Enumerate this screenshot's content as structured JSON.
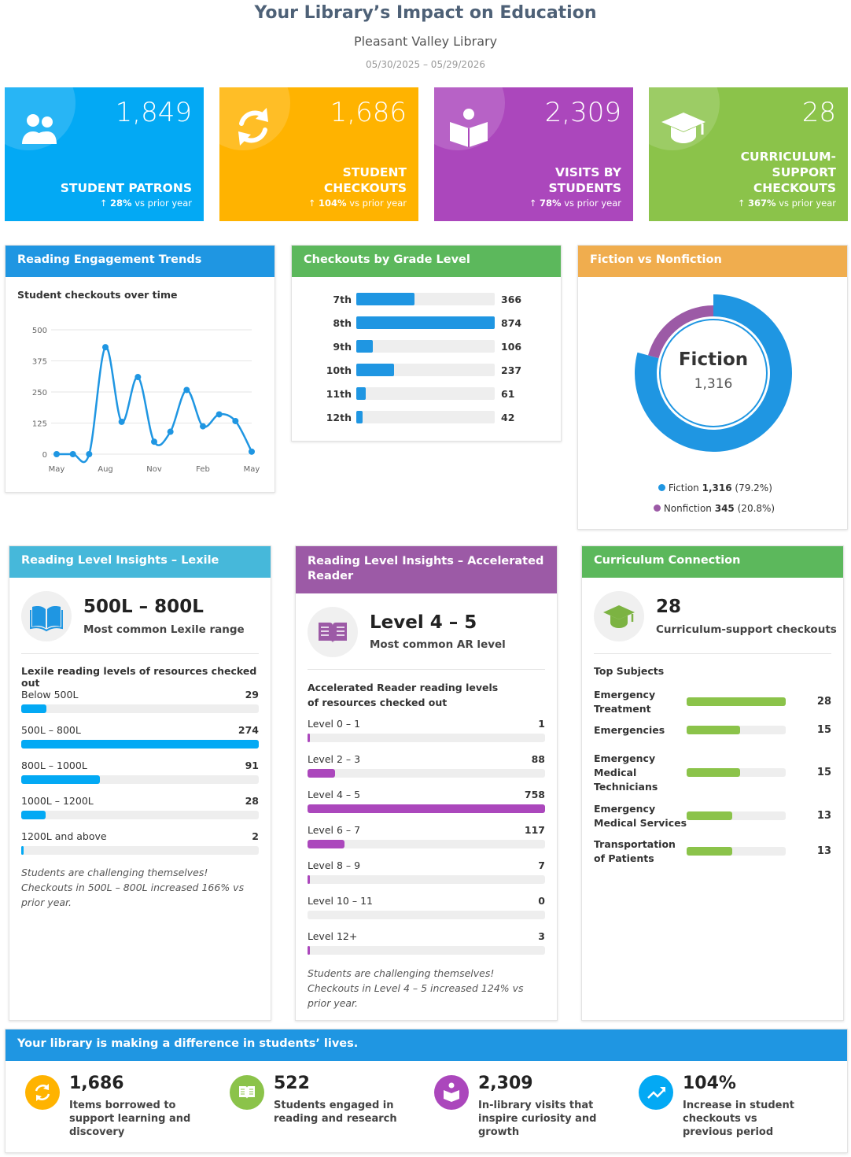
{
  "header": {
    "title": "Your Library’s Impact on Education",
    "library": "Pleasant Valley Library",
    "date_range": "05/30/2025 – 05/29/2026"
  },
  "kpis": [
    {
      "value": "1,849",
      "label": "STUDENT PATRONS",
      "pct": "28%",
      "suffix": " vs prior year",
      "color": "#03a9f4",
      "icon": "people-icon"
    },
    {
      "value": "1,686",
      "label": "STUDENT CHECKOUTS",
      "pct": "104%",
      "suffix": " vs prior year",
      "color": "#ffb300",
      "icon": "refresh-icon"
    },
    {
      "value": "2,309",
      "label": "VISITS BY STUDENTS",
      "pct": "78%",
      "suffix": " vs prior year",
      "color": "#ab47bc",
      "icon": "reader-icon"
    },
    {
      "value": "28",
      "label": "CURRICULUM-SUPPORT CHECKOUTS",
      "pct": "367%",
      "suffix": " vs prior year",
      "color": "#8bc34a",
      "icon": "graduation-cap-icon"
    }
  ],
  "trends": {
    "title": "Reading Engagement Trends",
    "subtitle": "Student checkouts over time"
  },
  "chart_data": [
    {
      "type": "line",
      "title": "Student checkouts over time",
      "x_labels": [
        "May",
        "Aug",
        "Nov",
        "Feb",
        "May"
      ],
      "ylim": [
        0,
        500
      ],
      "yticks": [
        0,
        125,
        250,
        375,
        500
      ],
      "grid": true,
      "values": [
        0,
        0,
        0,
        430,
        130,
        310,
        50,
        90,
        258,
        112,
        160,
        133,
        10
      ]
    },
    {
      "type": "bar",
      "title": "Checkouts by Grade Level",
      "categories": [
        "7th",
        "8th",
        "9th",
        "10th",
        "11th",
        "12th"
      ],
      "values": [
        366,
        874,
        106,
        237,
        61,
        42
      ]
    },
    {
      "type": "pie",
      "title": "Fiction vs Nonfiction",
      "categories": [
        "Fiction",
        "Nonfiction"
      ],
      "values": [
        1316,
        345
      ],
      "percents": [
        "79.2%",
        "20.8%"
      ]
    }
  ],
  "grade": {
    "title": "Checkouts by Grade Level",
    "rows": [
      {
        "label": "7th",
        "value": "366",
        "n": 366
      },
      {
        "label": "8th",
        "value": "874",
        "n": 874
      },
      {
        "label": "9th",
        "value": "106",
        "n": 106
      },
      {
        "label": "10th",
        "value": "237",
        "n": 237
      },
      {
        "label": "11th",
        "value": "61",
        "n": 61
      },
      {
        "label": "12th",
        "value": "42",
        "n": 42
      }
    ]
  },
  "fiction": {
    "title": "Fiction vs Nonfiction",
    "center_label": "Fiction",
    "center_value": "1,316",
    "legend": [
      {
        "name": "Fiction",
        "value": "1,316",
        "pct": "(79.2%)",
        "color": "#1f96e2"
      },
      {
        "name": "Nonfiction",
        "value": "345",
        "pct": "(20.8%)",
        "color": "#9c5aa6"
      }
    ]
  },
  "lexile": {
    "title": "Reading Level Insights – Lexile",
    "range": "500L – 800L",
    "range_sub": "Most common Lexile range",
    "list_title": "Lexile reading levels of resources checked out",
    "rows": [
      {
        "label": "Below 500L",
        "value": "29",
        "pct": 0.106
      },
      {
        "label": "500L – 800L",
        "value": "274",
        "pct": 1
      },
      {
        "label": "800L – 1000L",
        "value": "91",
        "pct": 0.332
      },
      {
        "label": "1000L – 1200L",
        "value": "28",
        "pct": 0.102
      },
      {
        "label": "1200L and above",
        "value": "2",
        "pct": 0.007
      }
    ],
    "note": "Students are challenging themselves! Checkouts in 500L – 800L increased 166% vs prior year."
  },
  "ar": {
    "title": "Reading Level Insights – Accelerated Reader",
    "level": "Level 4 – 5",
    "level_sub": "Most common AR level",
    "list_title": "Accelerated Reader reading levels of resources checked out",
    "rows": [
      {
        "label": "Level 0 – 1",
        "value": "1",
        "pct": 0.001
      },
      {
        "label": "Level 2 – 3",
        "value": "88",
        "pct": 0.116
      },
      {
        "label": "Level 4 – 5",
        "value": "758",
        "pct": 1
      },
      {
        "label": "Level 6 – 7",
        "value": "117",
        "pct": 0.154
      },
      {
        "label": "Level 8 – 9",
        "value": "7",
        "pct": 0.009
      },
      {
        "label": "Level 10 – 11",
        "value": "0",
        "pct": 0
      },
      {
        "label": "Level 12+",
        "value": "3",
        "pct": 0.004
      }
    ],
    "note": "Students are challenging themselves! Checkouts in Level 4 – 5 increased 124% vs prior year."
  },
  "curriculum": {
    "title": "Curriculum Connection",
    "count": "28",
    "count_sub": "Curriculum-support checkouts",
    "list_title": "Top Subjects",
    "rows": [
      {
        "label": "Emergency Treatment",
        "value": "28",
        "pct": 1
      },
      {
        "label": "Emergencies",
        "value": "15",
        "pct": 0.536
      },
      {
        "label": "Emergency Medical Technicians",
        "value": "15",
        "pct": 0.536
      },
      {
        "label": "Emergency Medical Services",
        "value": "13",
        "pct": 0.464
      },
      {
        "label": "Transportation of Patients",
        "value": "13",
        "pct": 0.464
      }
    ]
  },
  "difference": {
    "title": "Your library is making a difference in students’ lives.",
    "stats": [
      {
        "value": "1,686",
        "desc": "Items borrowed to support learning and discovery",
        "color": "#ffb300",
        "icon": "refresh-icon"
      },
      {
        "value": "522",
        "desc": "Students engaged in reading and research",
        "color": "#8bc34a",
        "icon": "open-book-icon"
      },
      {
        "value": "2,309",
        "desc": "In-library visits that inspire curiosity and growth",
        "color": "#ab47bc",
        "icon": "reader-icon"
      },
      {
        "value": "104%",
        "desc": "Increase in student checkouts vs previous period",
        "color": "#03a9f4",
        "icon": "trending-up-icon"
      }
    ]
  }
}
